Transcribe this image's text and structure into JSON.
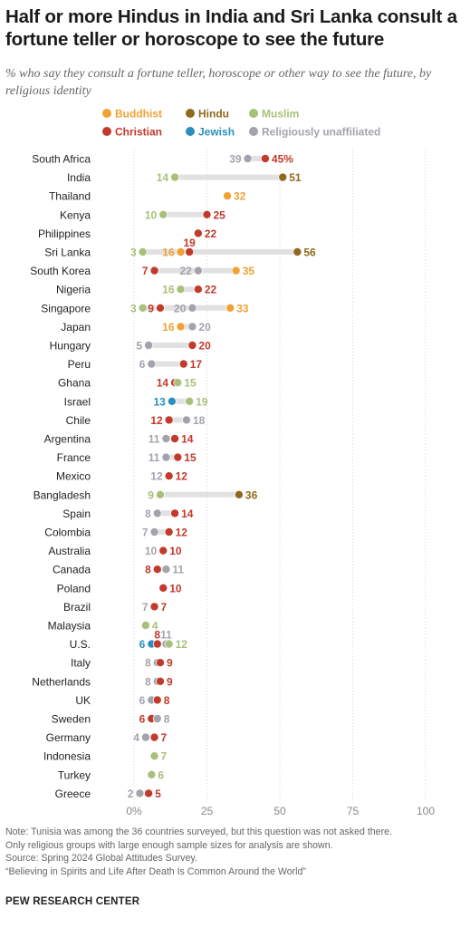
{
  "header": {
    "title": "Half or more Hindus in India and Sri Lanka consult a fortune teller or horoscope to see the future",
    "subtitle": "% who say they consult a fortune teller, horoscope or other way to see the future, by religious identity"
  },
  "colors": {
    "Buddhist": "#f0a134",
    "Hindu": "#8f6a1e",
    "Muslim": "#a8c07a",
    "Christian": "#c23a2b",
    "Jewish": "#2a8fbf",
    "Religiously unaffiliated": "#a3a3ae",
    "range_bar": "#e1e1e1",
    "gridline": "#d4d4d4"
  },
  "chart_data": {
    "type": "dot",
    "legend": [
      "Buddhist",
      "Hindu",
      "Muslim",
      "Christian",
      "Jewish",
      "Religiously unaffiliated"
    ],
    "x_ticks": [
      "0%",
      "25",
      "50",
      "75",
      "100"
    ],
    "xlim": [
      0,
      100
    ],
    "rows": [
      {
        "country": "South Africa",
        "values": {
          "Religiously unaffiliated": 39,
          "Christian": 45
        }
      },
      {
        "country": "India",
        "values": {
          "Muslim": 14,
          "Hindu": 51
        }
      },
      {
        "country": "Thailand",
        "values": {
          "Buddhist": 32
        }
      },
      {
        "country": "Kenya",
        "values": {
          "Muslim": 10,
          "Christian": 25
        }
      },
      {
        "country": "Philippines",
        "values": {
          "Christian": 22
        }
      },
      {
        "country": "Sri Lanka",
        "values": {
          "Muslim": 3,
          "Buddhist": 16,
          "Christian": 19,
          "Hindu": 56
        }
      },
      {
        "country": "South Korea",
        "values": {
          "Christian": 7,
          "Religiously unaffiliated": 22,
          "Buddhist": 35
        }
      },
      {
        "country": "Nigeria",
        "values": {
          "Muslim": 16,
          "Christian": 22
        }
      },
      {
        "country": "Singapore",
        "values": {
          "Muslim": 3,
          "Christian": 9,
          "Religiously unaffiliated": 20,
          "Buddhist": 33
        }
      },
      {
        "country": "Japan",
        "values": {
          "Buddhist": 16,
          "Religiously unaffiliated": 20
        }
      },
      {
        "country": "Hungary",
        "values": {
          "Religiously unaffiliated": 5,
          "Christian": 20
        }
      },
      {
        "country": "Peru",
        "values": {
          "Religiously unaffiliated": 6,
          "Christian": 17
        }
      },
      {
        "country": "Ghana",
        "values": {
          "Christian": 14,
          "Muslim": 15
        }
      },
      {
        "country": "Israel",
        "values": {
          "Jewish": 13,
          "Muslim": 19
        }
      },
      {
        "country": "Chile",
        "values": {
          "Christian": 12,
          "Religiously unaffiliated": 18
        }
      },
      {
        "country": "Argentina",
        "values": {
          "Religiously unaffiliated": 11,
          "Christian": 14
        }
      },
      {
        "country": "France",
        "values": {
          "Religiously unaffiliated": 11,
          "Christian": 15
        }
      },
      {
        "country": "Mexico",
        "values": {
          "Religiously unaffiliated": 12,
          "Christian": 12
        }
      },
      {
        "country": "Bangladesh",
        "values": {
          "Muslim": 9,
          "Hindu": 36
        }
      },
      {
        "country": "Spain",
        "values": {
          "Religiously unaffiliated": 8,
          "Christian": 14
        }
      },
      {
        "country": "Colombia",
        "values": {
          "Religiously unaffiliated": 7,
          "Christian": 12
        }
      },
      {
        "country": "Australia",
        "values": {
          "Religiously unaffiliated": 10,
          "Christian": 10
        }
      },
      {
        "country": "Canada",
        "values": {
          "Christian": 8,
          "Religiously unaffiliated": 11
        }
      },
      {
        "country": "Poland",
        "values": {
          "Christian": 10
        }
      },
      {
        "country": "Brazil",
        "values": {
          "Religiously unaffiliated": 7,
          "Christian": 7
        }
      },
      {
        "country": "Malaysia",
        "values": {
          "Muslim": 4
        }
      },
      {
        "country": "U.S.",
        "values": {
          "Jewish": 6,
          "Christian": 8,
          "Religiously unaffiliated": 11,
          "Muslim": 12
        }
      },
      {
        "country": "Italy",
        "values": {
          "Religiously unaffiliated": 8,
          "Christian": 9
        }
      },
      {
        "country": "Netherlands",
        "values": {
          "Religiously unaffiliated": 8,
          "Christian": 9
        }
      },
      {
        "country": "UK",
        "values": {
          "Religiously unaffiliated": 6,
          "Christian": 8
        }
      },
      {
        "country": "Sweden",
        "values": {
          "Christian": 6,
          "Religiously unaffiliated": 8
        }
      },
      {
        "country": "Germany",
        "values": {
          "Religiously unaffiliated": 4,
          "Christian": 7
        }
      },
      {
        "country": "Indonesia",
        "values": {
          "Muslim": 7
        }
      },
      {
        "country": "Turkey",
        "values": {
          "Muslim": 6
        }
      },
      {
        "country": "Greece",
        "values": {
          "Religiously unaffiliated": 2,
          "Christian": 5
        }
      }
    ]
  },
  "footer": {
    "note_1": "Note: Tunisia was among the 36 countries surveyed, but this question was not asked there.",
    "note_2": "Only religious groups with large enough sample sizes for analysis are shown.",
    "source": "Source: Spring 2024 Global Attitudes Survey.",
    "report": "“Believing in Spirits and Life After Death Is Common Around the World”",
    "organization": "PEW RESEARCH CENTER"
  }
}
